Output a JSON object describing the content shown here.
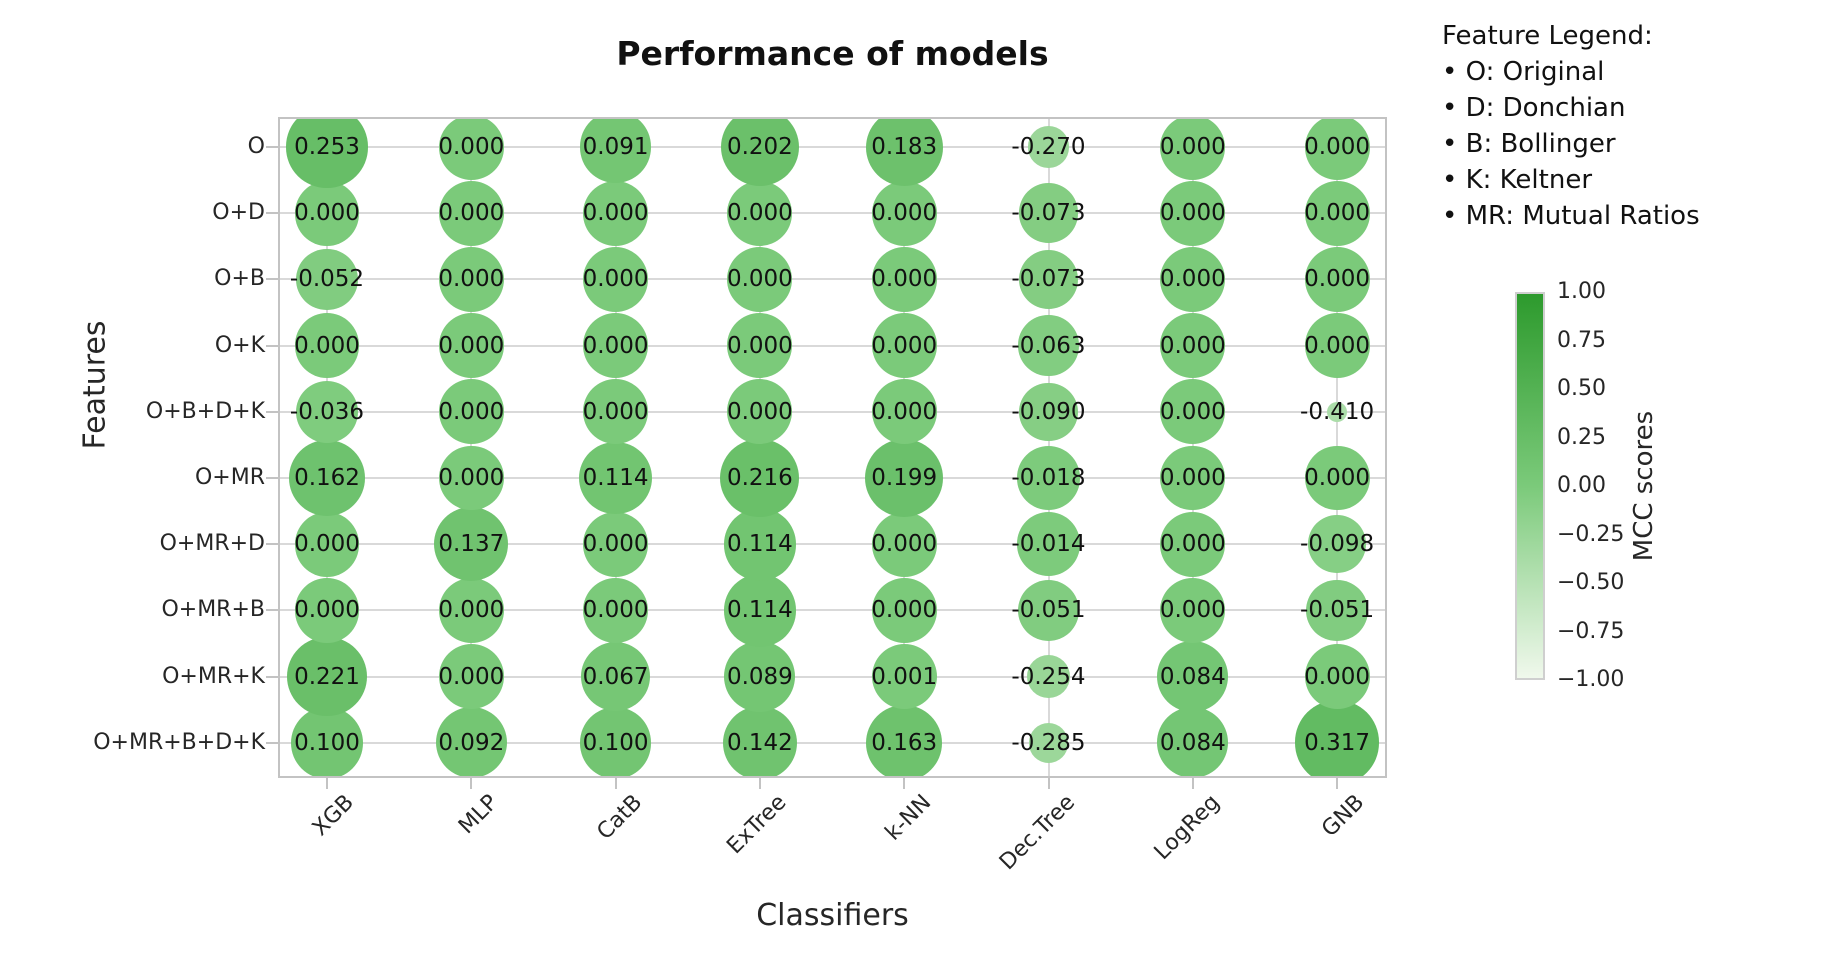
{
  "feature_legend": {
    "heading": "Feature Legend:",
    "items": [
      "• O: Original",
      "• D: Donchian",
      "• B: Bollinger",
      "• K: Keltner",
      "• MR: Mutual Ratios"
    ]
  },
  "colorbar": {
    "label": "MCC scores",
    "tick_labels": [
      "1.00",
      "0.75",
      "0.50",
      "0.25",
      "0.00",
      "−0.25",
      "−0.50",
      "−0.75",
      "−1.00"
    ],
    "range": [
      -1,
      1
    ],
    "colors": {
      "high": "#2d9a2d",
      "mid": "#7bca7a",
      "low": "#f0f8ec"
    }
  },
  "chart_data": {
    "type": "scatter",
    "subtype": "bubble-grid",
    "title": "Performance of models",
    "xlabel": "Classifiers",
    "ylabel": "Features",
    "x_categories": [
      "XGB",
      "MLP",
      "CatB",
      "ExTree",
      "k-NN",
      "Dec.Tree",
      "LogReg",
      "GNB"
    ],
    "y_categories": [
      "O",
      "O+D",
      "O+B",
      "O+K",
      "O+B+D+K",
      "O+MR",
      "O+MR+D",
      "O+MR+B",
      "O+MR+K",
      "O+MR+B+D+K"
    ],
    "values": [
      [
        0.253,
        0.0,
        0.091,
        0.202,
        0.183,
        -0.27,
        0.0,
        0.0
      ],
      [
        0.0,
        0.0,
        0.0,
        0.0,
        0.0,
        -0.073,
        0.0,
        0.0
      ],
      [
        -0.052,
        0.0,
        0.0,
        0.0,
        0.0,
        -0.073,
        0.0,
        0.0
      ],
      [
        0.0,
        0.0,
        0.0,
        0.0,
        0.0,
        -0.063,
        0.0,
        0.0
      ],
      [
        -0.036,
        0.0,
        0.0,
        0.0,
        0.0,
        -0.09,
        0.0,
        -0.41
      ],
      [
        0.162,
        0.0,
        0.114,
        0.216,
        0.199,
        -0.018,
        0.0,
        0.0
      ],
      [
        0.0,
        0.137,
        0.0,
        0.114,
        0.0,
        -0.014,
        0.0,
        -0.098
      ],
      [
        0.0,
        0.0,
        0.0,
        0.114,
        0.0,
        -0.051,
        0.0,
        -0.051
      ],
      [
        0.221,
        0.0,
        0.067,
        0.089,
        0.001,
        -0.254,
        0.084,
        0.0
      ],
      [
        0.1,
        0.092,
        0.1,
        0.142,
        0.163,
        -0.285,
        0.084,
        0.317
      ]
    ],
    "value_decimals": 3,
    "color_encoding": "bubble color maps MCC score from light green (-1) to dark green (+1)",
    "size_encoding": "bubble area increases with MCC score",
    "grid": true,
    "colorbar_ticks": [
      1.0,
      0.75,
      0.5,
      0.25,
      0.0,
      -0.25,
      -0.5,
      -0.75,
      -1.0
    ],
    "legend_position": "right"
  }
}
